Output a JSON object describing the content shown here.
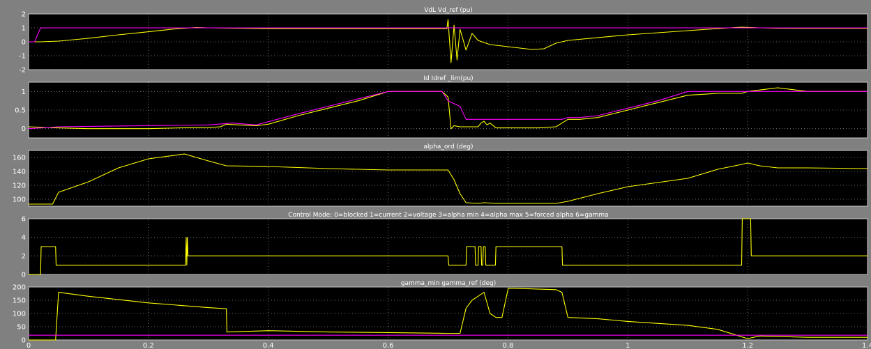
{
  "colors": {
    "figure_background": "#808080",
    "axes_background": "#000000",
    "signal": "#ffff00",
    "reference": "#ff00ff",
    "grid": "#ffffff",
    "text": "#ffffff"
  },
  "chart_data": [
    {
      "type": "line",
      "title": "VdL  Vd_ref (pu)",
      "xlabel": "",
      "ylabel": "",
      "xlim": [
        0,
        1.4
      ],
      "ylim": [
        -2,
        2
      ],
      "xticks": [
        0,
        0.2,
        0.4,
        0.6,
        0.8,
        1,
        1.2,
        1.4
      ],
      "yticks": [
        -2,
        -1,
        0,
        1,
        2
      ],
      "grid": true,
      "series": [
        {
          "color": "#ffff00",
          "x": [
            0,
            0.02,
            0.05,
            0.1,
            0.15,
            0.2,
            0.25,
            0.28,
            0.3,
            0.35,
            0.4,
            0.5,
            0.6,
            0.65,
            0.698,
            0.7,
            0.705,
            0.71,
            0.715,
            0.72,
            0.73,
            0.74,
            0.75,
            0.77,
            0.8,
            0.82,
            0.84,
            0.86,
            0.87,
            0.88,
            0.9,
            1.0,
            1.1,
            1.15,
            1.19,
            1.22,
            1.25,
            1.3,
            1.4
          ],
          "y": [
            0,
            0,
            0.05,
            0.25,
            0.5,
            0.72,
            0.95,
            1.02,
            1.0,
            0.98,
            0.95,
            0.95,
            0.95,
            0.95,
            0.95,
            1.6,
            -1.5,
            1.2,
            -1.3,
            0.9,
            -0.6,
            0.6,
            0.1,
            -0.2,
            -0.35,
            -0.45,
            -0.55,
            -0.5,
            -0.3,
            -0.1,
            0.1,
            0.5,
            0.8,
            0.95,
            1.05,
            1.0,
            0.98,
            0.97,
            0.97
          ]
        },
        {
          "color": "#ff00ff",
          "x": [
            0,
            0.01,
            0.02,
            0.3,
            0.6,
            0.9,
            1.4
          ],
          "y": [
            0,
            0,
            1.0,
            1.0,
            1.0,
            1.0,
            1.0
          ]
        }
      ]
    },
    {
      "type": "line",
      "title": "Id Idref _lim(pu)",
      "xlabel": "",
      "ylabel": "",
      "xlim": [
        0,
        1.4
      ],
      "ylim": [
        -0.25,
        1.25
      ],
      "xticks": [
        0,
        0.2,
        0.4,
        0.6,
        0.8,
        1,
        1.2,
        1.4
      ],
      "yticks": [
        0,
        0.5,
        1
      ],
      "grid": true,
      "series": [
        {
          "color": "#ffff00",
          "x": [
            0,
            0.05,
            0.1,
            0.2,
            0.25,
            0.3,
            0.32,
            0.33,
            0.35,
            0.38,
            0.4,
            0.45,
            0.5,
            0.55,
            0.58,
            0.6,
            0.65,
            0.69,
            0.7,
            0.705,
            0.71,
            0.72,
            0.75,
            0.755,
            0.76,
            0.765,
            0.77,
            0.78,
            0.8,
            0.85,
            0.88,
            0.89,
            0.9,
            0.92,
            0.95,
            1.0,
            1.05,
            1.1,
            1.15,
            1.17,
            1.19,
            1.2,
            1.25,
            1.3,
            1.4
          ],
          "y": [
            0.05,
            0.02,
            0.0,
            0.0,
            0.02,
            0.03,
            0.05,
            0.12,
            0.1,
            0.08,
            0.12,
            0.35,
            0.55,
            0.75,
            0.9,
            1.0,
            1.0,
            1.0,
            0.85,
            0.0,
            0.08,
            0.05,
            0.05,
            0.15,
            0.2,
            0.1,
            0.15,
            0.02,
            0.02,
            0.02,
            0.05,
            0.15,
            0.25,
            0.25,
            0.3,
            0.5,
            0.7,
            0.9,
            0.95,
            0.95,
            0.95,
            1.0,
            1.1,
            1.0,
            1.0
          ]
        },
        {
          "color": "#ff00ff",
          "x": [
            0,
            0.05,
            0.3,
            0.34,
            0.38,
            0.45,
            0.6,
            0.69,
            0.7,
            0.72,
            0.73,
            0.75,
            0.8,
            0.89,
            0.9,
            0.92,
            0.95,
            1.0,
            1.05,
            1.1,
            1.2,
            1.4
          ],
          "y": [
            0.0,
            0.05,
            0.1,
            0.15,
            0.1,
            0.4,
            1.0,
            1.0,
            0.75,
            0.6,
            0.25,
            0.25,
            0.25,
            0.25,
            0.3,
            0.3,
            0.35,
            0.55,
            0.75,
            1.0,
            1.0,
            1.0
          ]
        }
      ]
    },
    {
      "type": "line",
      "title": "alpha_ord (deg)",
      "xlabel": "",
      "ylabel": "",
      "xlim": [
        0,
        1.4
      ],
      "ylim": [
        90,
        170
      ],
      "xticks": [
        0,
        0.2,
        0.4,
        0.6,
        0.8,
        1,
        1.2,
        1.4
      ],
      "yticks": [
        100,
        120,
        140,
        160
      ],
      "grid": true,
      "series": [
        {
          "color": "#ffff00",
          "x": [
            0,
            0.04,
            0.05,
            0.1,
            0.15,
            0.2,
            0.26,
            0.3,
            0.33,
            0.4,
            0.5,
            0.6,
            0.7,
            0.71,
            0.72,
            0.73,
            0.75,
            0.76,
            0.78,
            0.8,
            0.88,
            0.9,
            0.95,
            1.0,
            1.1,
            1.15,
            1.19,
            1.2,
            1.22,
            1.25,
            1.3,
            1.4
          ],
          "y": [
            93,
            93,
            110,
            125,
            145,
            158,
            165,
            155,
            148,
            147,
            144,
            142,
            142,
            128,
            108,
            95,
            94,
            95,
            94,
            94,
            94,
            97,
            108,
            118,
            130,
            143,
            150,
            152,
            148,
            145,
            145,
            144
          ]
        }
      ]
    },
    {
      "type": "line",
      "title": "Control Mode:  0=blocked  1=current  2=voltage  3=alpha min  4=alpha max  5=forced alpha  6=gamma",
      "xlabel": "",
      "ylabel": "",
      "xlim": [
        0,
        1.4
      ],
      "ylim": [
        0,
        6
      ],
      "xticks": [
        0,
        0.2,
        0.4,
        0.6,
        0.8,
        1,
        1.2,
        1.4
      ],
      "yticks": [
        0,
        2,
        4,
        6
      ],
      "grid": true,
      "series": [
        {
          "color": "#ffff00",
          "x": [
            0,
            0.02,
            0.021,
            0.045,
            0.046,
            0.262,
            0.263,
            0.264,
            0.265,
            0.266,
            0.7,
            0.701,
            0.73,
            0.731,
            0.745,
            0.746,
            0.75,
            0.751,
            0.755,
            0.756,
            0.758,
            0.759,
            0.762,
            0.763,
            0.775,
            0.776,
            0.779,
            0.78,
            0.89,
            0.891,
            1.19,
            1.191,
            1.205,
            1.206,
            1.4
          ],
          "y": [
            0,
            0,
            3,
            3,
            1,
            1,
            4,
            1,
            4,
            2,
            2,
            1,
            1,
            3,
            3,
            1,
            1,
            3,
            3,
            1,
            1,
            3,
            3,
            1,
            1,
            1,
            1,
            3,
            3,
            1,
            1,
            6,
            6,
            2,
            2
          ]
        }
      ]
    },
    {
      "type": "line",
      "title": "gamma_min  gamma_ref (deg)",
      "xlabel": "",
      "ylabel": "",
      "xlim": [
        0,
        1.4
      ],
      "ylim": [
        0,
        200
      ],
      "xticks": [
        0,
        0.2,
        0.4,
        0.6,
        0.8,
        1,
        1.2,
        1.4
      ],
      "yticks": [
        0,
        50,
        100,
        150,
        200
      ],
      "grid": true,
      "series": [
        {
          "color": "#ffff00",
          "x": [
            0,
            0.045,
            0.05,
            0.1,
            0.2,
            0.3,
            0.33,
            0.331,
            0.4,
            0.5,
            0.6,
            0.7,
            0.72,
            0.73,
            0.74,
            0.75,
            0.76,
            0.77,
            0.78,
            0.79,
            0.8,
            0.8001,
            0.81,
            0.88,
            0.89,
            0.9,
            0.95,
            1.0,
            1.1,
            1.15,
            1.2,
            1.22,
            1.3,
            1.4
          ],
          "y": [
            0,
            0,
            180,
            165,
            140,
            122,
            118,
            30,
            35,
            30,
            28,
            25,
            25,
            120,
            150,
            165,
            180,
            100,
            85,
            85,
            190,
            195,
            195,
            190,
            180,
            85,
            80,
            70,
            55,
            40,
            5,
            15,
            10,
            10
          ]
        },
        {
          "color": "#ff00ff",
          "x": [
            0,
            1.4
          ],
          "y": [
            18,
            18
          ]
        }
      ]
    }
  ]
}
